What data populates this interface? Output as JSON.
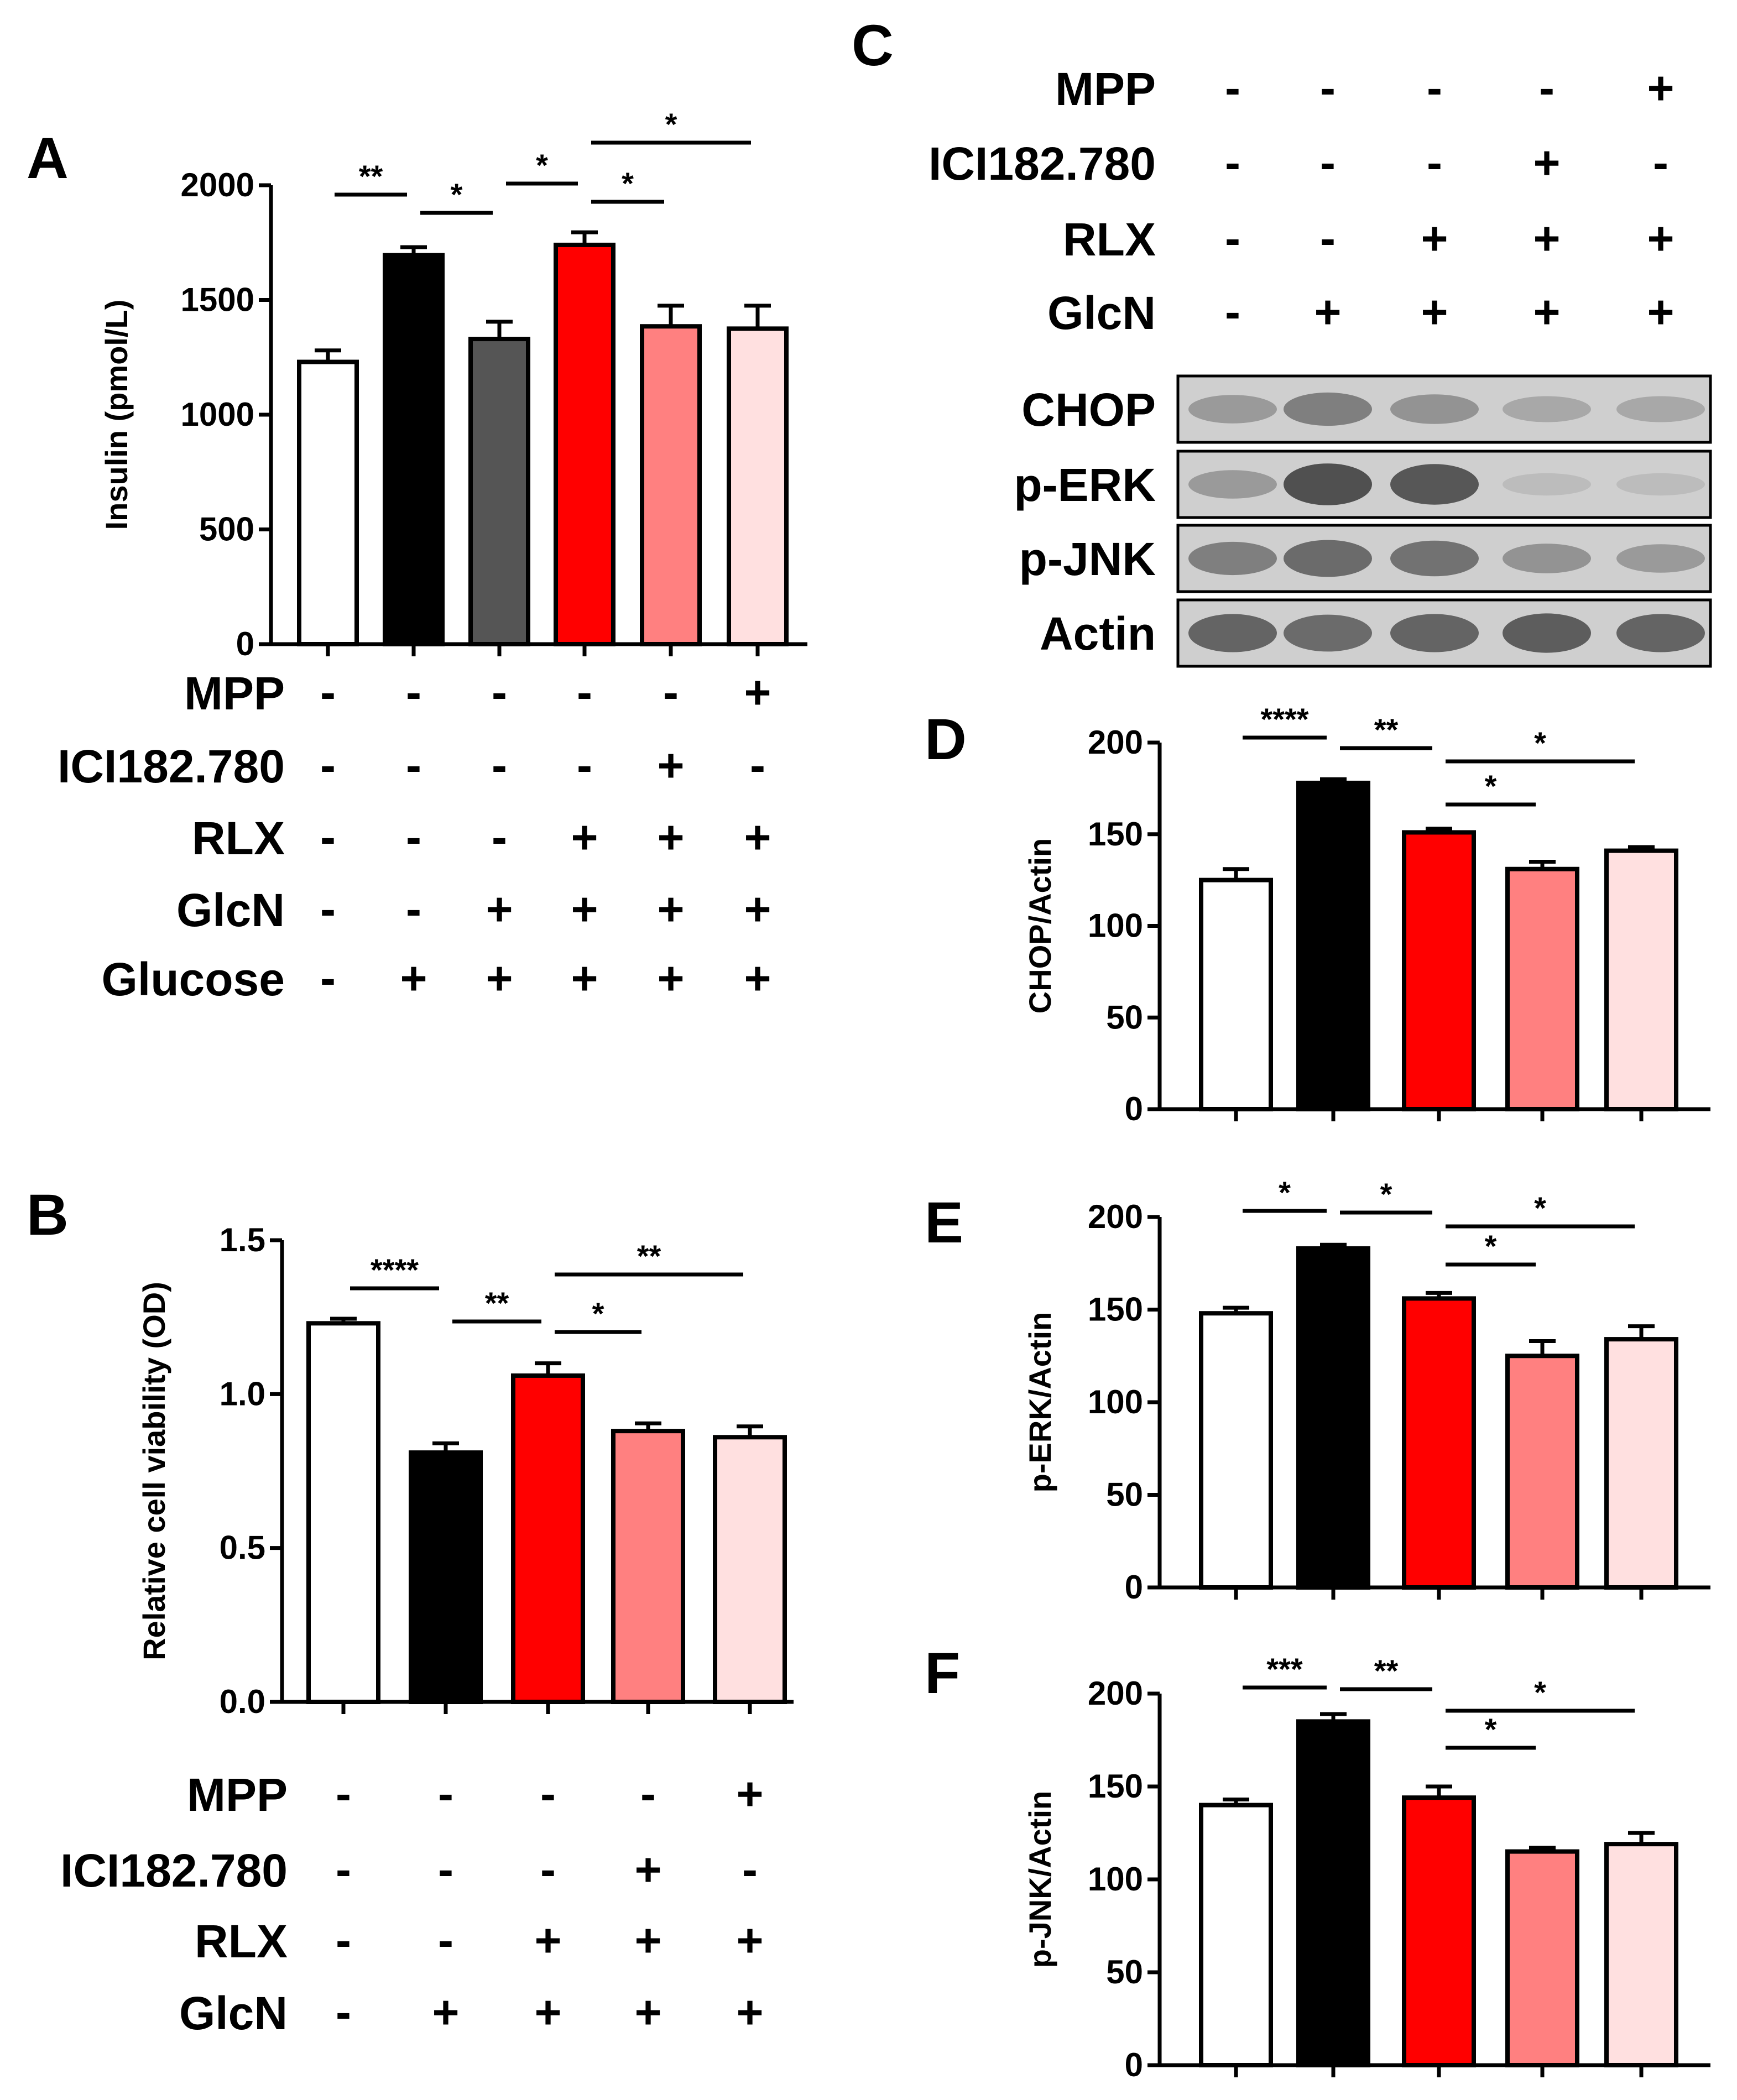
{
  "colors": {
    "control": "#ffffff",
    "glucose": "#000000",
    "glcn": "#555555",
    "rlx": "#ff0000",
    "ici": "#ff8080",
    "mpp": "#ffe0e0"
  },
  "western_blot": {
    "letter": "C",
    "treatments": [
      {
        "label": "MPP",
        "signs": [
          "-",
          "-",
          "-",
          "-",
          "+"
        ]
      },
      {
        "label": "ICI182.780",
        "signs": [
          "-",
          "-",
          "-",
          "+",
          "-"
        ]
      },
      {
        "label": "RLX",
        "signs": [
          "-",
          "-",
          "+",
          "+",
          "+"
        ]
      },
      {
        "label": "GlcN",
        "signs": [
          "-",
          "+",
          "+",
          "+",
          "+"
        ]
      }
    ],
    "bands": [
      {
        "label": "CHOP",
        "intensity": [
          0.35,
          0.55,
          0.4,
          0.25,
          0.25
        ]
      },
      {
        "label": "p-ERK",
        "intensity": [
          0.35,
          0.9,
          0.85,
          0.1,
          0.1
        ]
      },
      {
        "label": "p-JNK",
        "intensity": [
          0.55,
          0.7,
          0.65,
          0.4,
          0.35
        ]
      },
      {
        "label": "Actin",
        "intensity": [
          0.75,
          0.7,
          0.75,
          0.8,
          0.75
        ]
      }
    ]
  },
  "chart_data": [
    {
      "panel": "A",
      "type": "bar",
      "ylabel": "Insulin (pmol/L)",
      "ylim": [
        0,
        2000
      ],
      "yticks": [
        0,
        500,
        1000,
        1500,
        2000
      ],
      "values": [
        1230,
        1695,
        1330,
        1740,
        1385,
        1375
      ],
      "errors": [
        50,
        35,
        75,
        55,
        90,
        100
      ],
      "fills": [
        "control",
        "glucose",
        "glcn",
        "rlx",
        "ici",
        "mpp"
      ],
      "treatments": [
        {
          "label": "MPP",
          "signs": [
            "-",
            "-",
            "-",
            "-",
            "-",
            "+"
          ]
        },
        {
          "label": "ICI182.780",
          "signs": [
            "-",
            "-",
            "-",
            "-",
            "+",
            "-"
          ]
        },
        {
          "label": "RLX",
          "signs": [
            "-",
            "-",
            "-",
            "+",
            "+",
            "+"
          ]
        },
        {
          "label": "GlcN",
          "signs": [
            "-",
            "-",
            "+",
            "+",
            "+",
            "+"
          ]
        },
        {
          "label": "Glucose",
          "signs": [
            "-",
            "+",
            "+",
            "+",
            "+",
            "+"
          ]
        }
      ],
      "significance": [
        {
          "from": 0,
          "to": 1,
          "label": "**"
        },
        {
          "from": 1,
          "to": 2,
          "label": "*"
        },
        {
          "from": 2,
          "to": 3,
          "label": "*"
        },
        {
          "from": 3,
          "to": 4,
          "label": "*"
        },
        {
          "from": 3,
          "to": 5,
          "label": "*"
        }
      ]
    },
    {
      "panel": "B",
      "type": "bar",
      "ylabel": "Relative cell viability (OD)",
      "ylim": [
        0,
        1.5
      ],
      "yticks": [
        "0.0",
        "0.5",
        "1.0",
        "1.5"
      ],
      "values": [
        1.23,
        0.81,
        1.06,
        0.88,
        0.86
      ],
      "errors": [
        0.015,
        0.03,
        0.04,
        0.025,
        0.035
      ],
      "fills": [
        "control",
        "glucose",
        "rlx",
        "ici",
        "mpp"
      ],
      "treatments": [
        {
          "label": "MPP",
          "signs": [
            "-",
            "-",
            "-",
            "-",
            "+"
          ]
        },
        {
          "label": "ICI182.780",
          "signs": [
            "-",
            "-",
            "-",
            "+",
            "-"
          ]
        },
        {
          "label": "RLX",
          "signs": [
            "-",
            "-",
            "+",
            "+",
            "+"
          ]
        },
        {
          "label": "GlcN",
          "signs": [
            "-",
            "+",
            "+",
            "+",
            "+"
          ]
        }
      ],
      "significance": [
        {
          "from": 0,
          "to": 1,
          "label": "****"
        },
        {
          "from": 1,
          "to": 2,
          "label": "**"
        },
        {
          "from": 2,
          "to": 3,
          "label": "*"
        },
        {
          "from": 2,
          "to": 4,
          "label": "**"
        }
      ]
    },
    {
      "panel": "D",
      "type": "bar",
      "ylabel": "CHOP/Actin",
      "ylim": [
        0,
        200
      ],
      "yticks": [
        0,
        50,
        100,
        150,
        200
      ],
      "values": [
        125,
        178,
        151,
        131,
        141
      ],
      "errors": [
        6,
        2,
        2,
        4,
        2
      ],
      "fills": [
        "control",
        "glucose",
        "rlx",
        "ici",
        "mpp"
      ],
      "significance": [
        {
          "from": 0,
          "to": 1,
          "label": "****"
        },
        {
          "from": 1,
          "to": 2,
          "label": "**"
        },
        {
          "from": 2,
          "to": 3,
          "label": "*"
        },
        {
          "from": 2,
          "to": 4,
          "label": "*"
        }
      ]
    },
    {
      "panel": "E",
      "type": "bar",
      "ylabel": "p-ERK/Actin",
      "ylim": [
        0,
        200
      ],
      "yticks": [
        0,
        50,
        100,
        150,
        200
      ],
      "values": [
        148,
        183,
        156,
        125,
        134
      ],
      "errors": [
        3,
        2,
        3,
        8,
        7
      ],
      "fills": [
        "control",
        "glucose",
        "rlx",
        "ici",
        "mpp"
      ],
      "significance": [
        {
          "from": 0,
          "to": 1,
          "label": "*"
        },
        {
          "from": 1,
          "to": 2,
          "label": "*"
        },
        {
          "from": 2,
          "to": 3,
          "label": "*"
        },
        {
          "from": 2,
          "to": 4,
          "label": "*"
        }
      ]
    },
    {
      "panel": "F",
      "type": "bar",
      "ylabel": "p-JNK/Actin",
      "ylim": [
        0,
        200
      ],
      "yticks": [
        0,
        50,
        100,
        150,
        200
      ],
      "values": [
        140,
        185,
        144,
        115,
        119
      ],
      "errors": [
        3,
        4,
        6,
        2,
        6
      ],
      "fills": [
        "control",
        "glucose",
        "rlx",
        "ici",
        "mpp"
      ],
      "significance": [
        {
          "from": 0,
          "to": 1,
          "label": "***"
        },
        {
          "from": 1,
          "to": 2,
          "label": "**"
        },
        {
          "from": 2,
          "to": 3,
          "label": "*"
        },
        {
          "from": 2,
          "to": 4,
          "label": "*"
        }
      ]
    }
  ]
}
